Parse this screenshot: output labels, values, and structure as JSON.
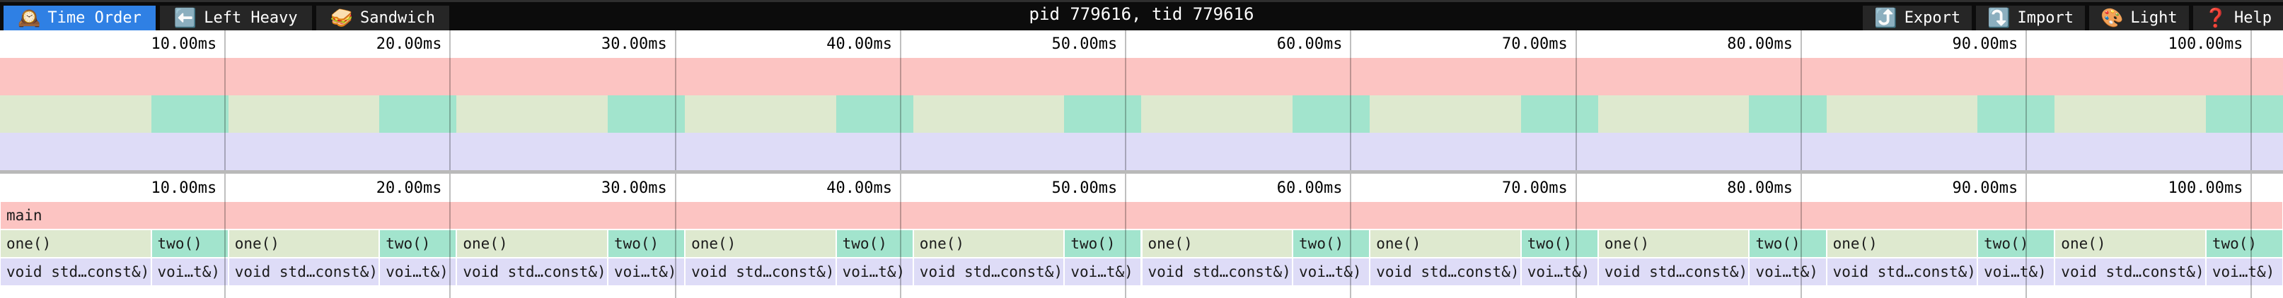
{
  "toolbar": {
    "title": "pid 779616, tid 779616",
    "tabs": [
      {
        "label": "Time Order",
        "icon": "🕰️",
        "icon_name": "mantel-clock",
        "active": true
      },
      {
        "label": "Left Heavy",
        "icon": "⬅️",
        "icon_name": "left-arrow",
        "active": false
      },
      {
        "label": "Sandwich",
        "icon": "🥪",
        "icon_name": "sandwich",
        "active": false
      }
    ],
    "actions": [
      {
        "label": "Export",
        "icon": "⤴️",
        "icon_name": "export-arrow"
      },
      {
        "label": "Import",
        "icon": "⤵️",
        "icon_name": "import-arrow"
      },
      {
        "label": "Light",
        "icon": "🎨",
        "icon_name": "palette"
      },
      {
        "label": "Help",
        "icon": "❓",
        "icon_name": "question-mark"
      }
    ]
  },
  "colors": {
    "accent_blue": "#2f80e4",
    "toolbar_bg": "#0c0c0c",
    "toolbar_button_bg": "#262626",
    "toolbar_text": "#ffffff",
    "panel_bg": "#ffffff",
    "frame_pink": "#fcc4c2",
    "frame_green": "#dee9cf",
    "frame_teal": "#a2e4cd",
    "frame_lavender": "#dedcf7",
    "gridline": "rgba(0,0,0,0.25)",
    "divider": "#b9b9b9",
    "label_text": "#1b1b1b"
  },
  "chart_data": {
    "type": "flamegraph",
    "title": "pid 779616, tid 779616",
    "x_axis": {
      "unit": "ms",
      "min": 0,
      "max": 101.4,
      "tick_interval_ms": 10,
      "grid": true
    },
    "total_ms": 101.4,
    "ticks": [
      {
        "ms": 10,
        "label": "10.00ms"
      },
      {
        "ms": 20,
        "label": "20.00ms"
      },
      {
        "ms": 30,
        "label": "30.00ms"
      },
      {
        "ms": 40,
        "label": "40.00ms"
      },
      {
        "ms": 50,
        "label": "50.00ms"
      },
      {
        "ms": 60,
        "label": "60.00ms"
      },
      {
        "ms": 70,
        "label": "70.00ms"
      },
      {
        "ms": 80,
        "label": "80.00ms"
      },
      {
        "ms": 90,
        "label": "90.00ms"
      },
      {
        "ms": 100,
        "label": "100.00ms"
      }
    ],
    "levels": [
      {
        "depth": 0,
        "frames": [
          {
            "label": "main",
            "start_ms": 0,
            "end_ms": 101.4,
            "kind": "pink"
          }
        ]
      },
      {
        "depth": 1,
        "frames": [
          {
            "label": "one()",
            "start_ms": 0.0,
            "end_ms": 6.71,
            "kind": "green"
          },
          {
            "label": "two()",
            "start_ms": 6.71,
            "end_ms": 10.14,
            "kind": "teal"
          },
          {
            "label": "one()",
            "start_ms": 10.14,
            "end_ms": 16.85,
            "kind": "green"
          },
          {
            "label": "two()",
            "start_ms": 16.85,
            "end_ms": 20.28,
            "kind": "teal"
          },
          {
            "label": "one()",
            "start_ms": 20.28,
            "end_ms": 26.99,
            "kind": "green"
          },
          {
            "label": "two()",
            "start_ms": 26.99,
            "end_ms": 30.42,
            "kind": "teal"
          },
          {
            "label": "one()",
            "start_ms": 30.42,
            "end_ms": 37.13,
            "kind": "green"
          },
          {
            "label": "two()",
            "start_ms": 37.13,
            "end_ms": 40.56,
            "kind": "teal"
          },
          {
            "label": "one()",
            "start_ms": 40.56,
            "end_ms": 47.27,
            "kind": "green"
          },
          {
            "label": "two()",
            "start_ms": 47.27,
            "end_ms": 50.7,
            "kind": "teal"
          },
          {
            "label": "one()",
            "start_ms": 50.7,
            "end_ms": 57.41,
            "kind": "green"
          },
          {
            "label": "two()",
            "start_ms": 57.41,
            "end_ms": 60.84,
            "kind": "teal"
          },
          {
            "label": "one()",
            "start_ms": 60.84,
            "end_ms": 67.55,
            "kind": "green"
          },
          {
            "label": "two()",
            "start_ms": 67.55,
            "end_ms": 70.98,
            "kind": "teal"
          },
          {
            "label": "one()",
            "start_ms": 70.98,
            "end_ms": 77.69,
            "kind": "green"
          },
          {
            "label": "two()",
            "start_ms": 77.69,
            "end_ms": 81.12,
            "kind": "teal"
          },
          {
            "label": "one()",
            "start_ms": 81.12,
            "end_ms": 87.83,
            "kind": "green"
          },
          {
            "label": "two()",
            "start_ms": 87.83,
            "end_ms": 91.26,
            "kind": "teal"
          },
          {
            "label": "one()",
            "start_ms": 91.26,
            "end_ms": 97.97,
            "kind": "green"
          },
          {
            "label": "two()",
            "start_ms": 97.97,
            "end_ms": 101.4,
            "kind": "teal"
          }
        ]
      },
      {
        "depth": 2,
        "frames": [
          {
            "label": "void std…const&)",
            "start_ms": 0.0,
            "end_ms": 6.71,
            "kind": "lavender"
          },
          {
            "label": "voi…t&)",
            "start_ms": 6.71,
            "end_ms": 10.14,
            "kind": "lavender"
          },
          {
            "label": "void std…const&)",
            "start_ms": 10.14,
            "end_ms": 16.85,
            "kind": "lavender"
          },
          {
            "label": "voi…t&)",
            "start_ms": 16.85,
            "end_ms": 20.28,
            "kind": "lavender"
          },
          {
            "label": "void std…const&)",
            "start_ms": 20.28,
            "end_ms": 26.99,
            "kind": "lavender"
          },
          {
            "label": "voi…t&)",
            "start_ms": 26.99,
            "end_ms": 30.42,
            "kind": "lavender"
          },
          {
            "label": "void std…const&)",
            "start_ms": 30.42,
            "end_ms": 37.13,
            "kind": "lavender"
          },
          {
            "label": "voi…t&)",
            "start_ms": 37.13,
            "end_ms": 40.56,
            "kind": "lavender"
          },
          {
            "label": "void std…const&)",
            "start_ms": 40.56,
            "end_ms": 47.27,
            "kind": "lavender"
          },
          {
            "label": "voi…t&)",
            "start_ms": 47.27,
            "end_ms": 50.7,
            "kind": "lavender"
          },
          {
            "label": "void std…const&)",
            "start_ms": 50.7,
            "end_ms": 57.41,
            "kind": "lavender"
          },
          {
            "label": "voi…t&)",
            "start_ms": 57.41,
            "end_ms": 60.84,
            "kind": "lavender"
          },
          {
            "label": "void std…const&)",
            "start_ms": 60.84,
            "end_ms": 67.55,
            "kind": "lavender"
          },
          {
            "label": "voi…t&)",
            "start_ms": 67.55,
            "end_ms": 70.98,
            "kind": "lavender"
          },
          {
            "label": "void std…const&)",
            "start_ms": 70.98,
            "end_ms": 77.69,
            "kind": "lavender"
          },
          {
            "label": "voi…t&)",
            "start_ms": 77.69,
            "end_ms": 81.12,
            "kind": "lavender"
          },
          {
            "label": "void std…const&)",
            "start_ms": 81.12,
            "end_ms": 87.83,
            "kind": "lavender"
          },
          {
            "label": "voi…t&)",
            "start_ms": 87.83,
            "end_ms": 91.26,
            "kind": "lavender"
          },
          {
            "label": "void std…const&)",
            "start_ms": 91.26,
            "end_ms": 97.97,
            "kind": "lavender"
          },
          {
            "label": "voi…t&)",
            "start_ms": 97.97,
            "end_ms": 101.4,
            "kind": "lavender"
          }
        ]
      }
    ]
  }
}
